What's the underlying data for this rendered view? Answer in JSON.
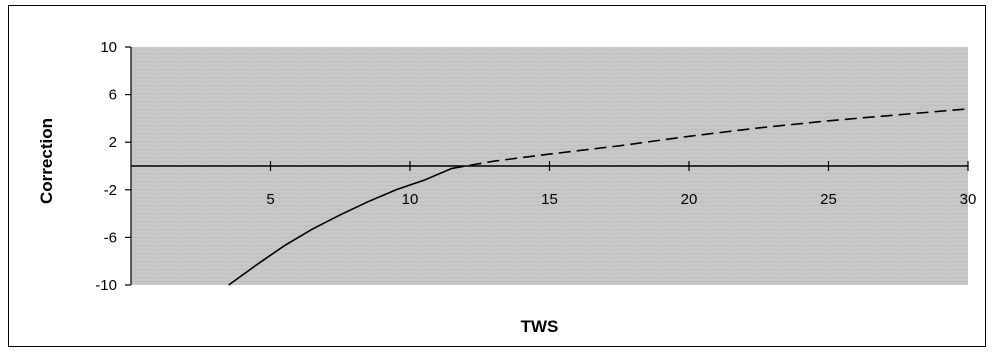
{
  "chart_data": {
    "type": "line",
    "xlabel": "TWS",
    "ylabel": "Correction",
    "xlim": [
      0,
      30
    ],
    "ylim": [
      -10,
      10
    ],
    "x_ticks": [
      5,
      10,
      15,
      20,
      25,
      30
    ],
    "y_ticks": [
      10,
      6,
      2,
      -2,
      -6,
      -10
    ],
    "grid": false,
    "legend": "none",
    "plot_background": "#c8c8c8",
    "series": [
      {
        "style": "solid",
        "color": "#000000",
        "points": [
          [
            3.5,
            -10
          ],
          [
            4.5,
            -8.3
          ],
          [
            5.5,
            -6.7
          ],
          [
            6.5,
            -5.3
          ],
          [
            7.5,
            -4.1
          ],
          [
            8.5,
            -3.0
          ],
          [
            9.5,
            -2.0
          ],
          [
            10.5,
            -1.2
          ],
          [
            11.5,
            -0.2
          ]
        ]
      },
      {
        "style": "dashed",
        "color": "#000000",
        "points": [
          [
            11.5,
            -0.2
          ],
          [
            13,
            0.4
          ],
          [
            15,
            1.0
          ],
          [
            17.5,
            1.7
          ],
          [
            20,
            2.5
          ],
          [
            22.5,
            3.2
          ],
          [
            25,
            3.8
          ],
          [
            27.5,
            4.3
          ],
          [
            30,
            4.8
          ]
        ]
      }
    ]
  }
}
